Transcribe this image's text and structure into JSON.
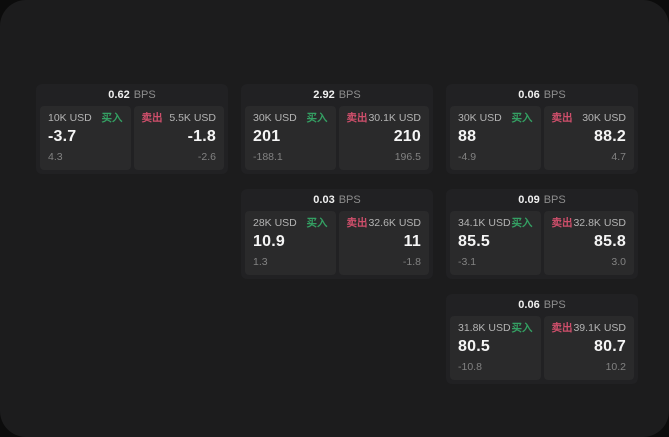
{
  "labels": {
    "buy": "买入",
    "sell": "卖出",
    "bps_unit": "BPS"
  },
  "colors": {
    "panel_bg": "#1c1c1d",
    "card_bg": "#212123",
    "cell_bg": "#2a2a2b",
    "green": "#34a063",
    "red": "#cf4f6b",
    "big_text": "#f5f5f5",
    "muted_text": "#b4b4b4",
    "sub_text": "#828282"
  },
  "cards": [
    {
      "bps": "0.62",
      "buy_amount": "10K USD",
      "buy_value": "-3.7",
      "buy_sub": "4.3",
      "sell_amount": "5.5K USD",
      "sell_value": "-1.8",
      "sell_sub": "-2.6"
    },
    {
      "bps": "2.92",
      "buy_amount": "30K USD",
      "buy_value": "201",
      "buy_sub": "-188.1",
      "sell_amount": "30.1K USD",
      "sell_value": "210",
      "sell_sub": "196.5"
    },
    {
      "bps": "0.06",
      "buy_amount": "30K USD",
      "buy_value": "88",
      "buy_sub": "-4.9",
      "sell_amount": "30K USD",
      "sell_value": "88.2",
      "sell_sub": "4.7"
    },
    {
      "bps": "0.03",
      "buy_amount": "28K USD",
      "buy_value": "10.9",
      "buy_sub": "1.3",
      "sell_amount": "32.6K USD",
      "sell_value": "11",
      "sell_sub": "-1.8"
    },
    {
      "bps": "0.09",
      "buy_amount": "34.1K USD",
      "buy_value": "85.5",
      "buy_sub": "-3.1",
      "sell_amount": "32.8K USD",
      "sell_value": "85.8",
      "sell_sub": "3.0"
    },
    {
      "bps": "0.06",
      "buy_amount": "31.8K USD",
      "buy_value": "80.5",
      "buy_sub": "-10.8",
      "sell_amount": "39.1K USD",
      "sell_value": "80.7",
      "sell_sub": "10.2"
    }
  ]
}
